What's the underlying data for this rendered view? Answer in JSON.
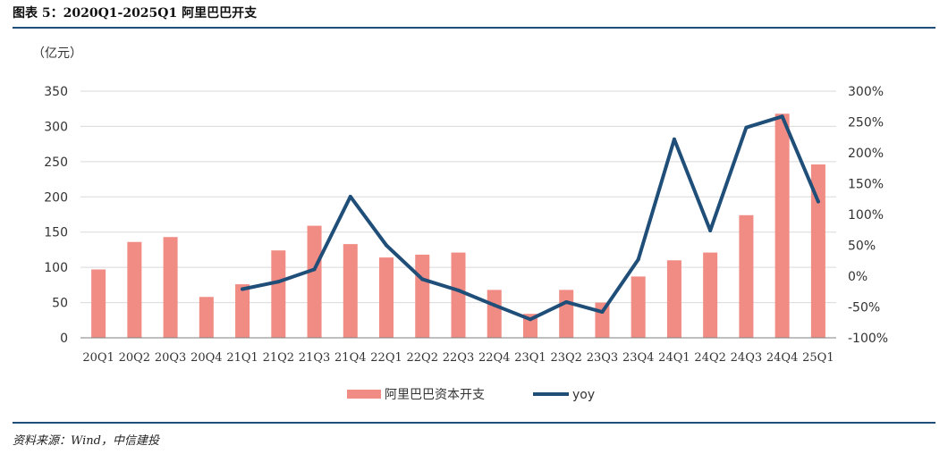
{
  "header": {
    "title": "图表 5：2020Q1-2025Q1 阿里巴巴开支"
  },
  "footer": {
    "source": "资料来源：Wind，中信建投"
  },
  "colors": {
    "bar": "#f08c84",
    "line": "#1f4e79",
    "rule": "#1f4e79",
    "grid": "#d9d9d9"
  },
  "chart_data": {
    "type": "bar",
    "title": "",
    "y_unit_label": "（亿元）",
    "categories": [
      "20Q1",
      "20Q2",
      "20Q3",
      "20Q4",
      "21Q1",
      "21Q2",
      "21Q3",
      "21Q4",
      "22Q1",
      "22Q2",
      "22Q3",
      "22Q4",
      "23Q1",
      "23Q2",
      "23Q3",
      "23Q4",
      "24Q1",
      "24Q2",
      "24Q3",
      "24Q4",
      "25Q1"
    ],
    "ylim": [
      0,
      350
    ],
    "y_ticks": [
      0,
      50,
      100,
      150,
      200,
      250,
      300,
      350
    ],
    "y2lim": [
      -100,
      300
    ],
    "y2_ticks": [
      -100,
      -50,
      0,
      50,
      100,
      150,
      200,
      250,
      300
    ],
    "y2_tick_labels": [
      "-100%",
      "-50%",
      "0%",
      "50%",
      "100%",
      "150%",
      "200%",
      "250%",
      "300%"
    ],
    "grid": true,
    "legend_position": "bottom",
    "series": [
      {
        "name": "阿里巴巴资本开支",
        "type": "bar",
        "axis": "left",
        "values": [
          97,
          136,
          143,
          58,
          76,
          124,
          159,
          133,
          114,
          118,
          121,
          68,
          34,
          68,
          50,
          87,
          110,
          121,
          174,
          318,
          246
        ]
      },
      {
        "name": "yoy",
        "type": "line",
        "axis": "right",
        "values": [
          null,
          null,
          null,
          null,
          -21,
          -9,
          11,
          129,
          50,
          -5,
          -23,
          -47,
          -70,
          -42,
          -58,
          27,
          222,
          74,
          241,
          259,
          121
        ]
      }
    ]
  }
}
